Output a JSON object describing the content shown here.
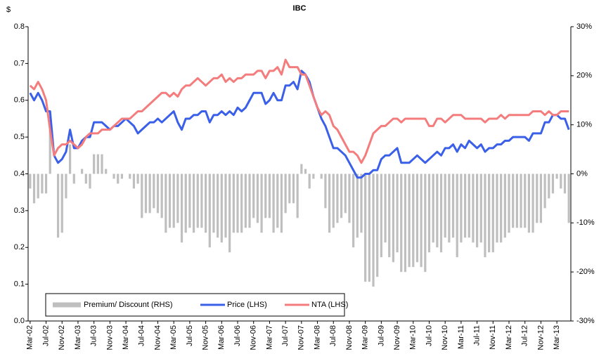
{
  "chart_data": {
    "type": "combo",
    "title": "IBC",
    "y_label": "$",
    "categories": [
      "Mar-02",
      null,
      null,
      null,
      "Jul-02",
      null,
      null,
      null,
      "Nov-02",
      null,
      null,
      null,
      "Mar-03",
      null,
      null,
      null,
      "Jul-03",
      null,
      null,
      null,
      "Nov-03",
      null,
      null,
      null,
      "Mar-04",
      null,
      null,
      null,
      "Jul-04",
      null,
      null,
      null,
      "Nov-04",
      null,
      null,
      null,
      "Mar-05",
      null,
      null,
      null,
      "Jul-05",
      null,
      null,
      null,
      "Nov-05",
      null,
      null,
      null,
      "Mar-06",
      null,
      null,
      null,
      "Jul-06",
      null,
      null,
      null,
      "Nov-06",
      null,
      null,
      null,
      "Mar-07",
      null,
      null,
      null,
      "Jul-07",
      null,
      null,
      null,
      "Nov-07",
      null,
      null,
      null,
      "Mar-08",
      null,
      null,
      null,
      "Jul-08",
      null,
      null,
      null,
      "Nov-08",
      null,
      null,
      null,
      "Mar-09",
      null,
      null,
      null,
      "Jul-09",
      null,
      null,
      null,
      "Nov-09",
      null,
      null,
      null,
      "Mar-10",
      null,
      null,
      null,
      "Jul-10",
      null,
      null,
      null,
      "Nov-10",
      null,
      null,
      null,
      "Mar-11",
      null,
      null,
      null,
      "Jul-11",
      null,
      null,
      null,
      "Nov-11",
      null,
      null,
      null,
      "Mar-12",
      null,
      null,
      null,
      "Jul-12",
      null,
      null,
      null,
      "Nov-12",
      null,
      null,
      null,
      "Mar-13",
      null,
      null,
      null
    ],
    "series": [
      {
        "name": "Premium/ Discount (RHS)",
        "kind": "bar",
        "axis": "y2",
        "color": "#bfbfbf",
        "values": [
          -3,
          -6,
          -5,
          -4,
          -4,
          10,
          0,
          -13,
          -12,
          -5,
          6,
          -2,
          0,
          1,
          -2,
          -3,
          4,
          4,
          4,
          1,
          0,
          -1,
          -2,
          -1,
          0,
          -1,
          -3,
          -2,
          -9,
          -8,
          -8,
          -7,
          -8,
          -9,
          -12,
          -11,
          -11,
          -10,
          -14,
          -12,
          -11,
          -12,
          -11,
          -11,
          -12,
          -15,
          -12,
          -13,
          -14,
          -13,
          -16,
          -12,
          -12,
          -12,
          -11,
          -11,
          -9,
          -10,
          -12,
          -9,
          -9,
          -12,
          -11,
          -12,
          -8,
          -6,
          -6,
          -9,
          2,
          1,
          -3,
          -1,
          0,
          -1,
          -7,
          -12,
          -11,
          -10,
          -9,
          -8,
          -10,
          -15,
          -13,
          -12,
          -22,
          -22,
          -23,
          -21,
          -17,
          -14,
          -17,
          -18,
          -16,
          -20,
          -20,
          -19,
          -19,
          -18,
          -19,
          -20,
          -16,
          -14,
          -15,
          -16,
          -13,
          -14,
          -13,
          -17,
          -14,
          -13,
          -13,
          -14,
          -15,
          -14,
          -17,
          -16,
          -16,
          -14,
          -14,
          -13,
          -12,
          -11,
          -11,
          -11,
          -11,
          -12,
          -12,
          -10,
          -10,
          -7,
          -5,
          -4,
          -1,
          -3,
          -4,
          -10
        ]
      },
      {
        "name": "Price (LHS)",
        "kind": "line",
        "color": "#3a5fe8",
        "values": [
          0.62,
          0.6,
          0.62,
          0.6,
          0.57,
          0.57,
          0.45,
          0.43,
          0.44,
          0.46,
          0.52,
          0.47,
          0.47,
          0.49,
          0.5,
          0.5,
          0.54,
          0.54,
          0.54,
          0.53,
          0.52,
          0.53,
          0.53,
          0.54,
          0.55,
          0.54,
          0.53,
          0.51,
          0.52,
          0.53,
          0.54,
          0.54,
          0.55,
          0.54,
          0.55,
          0.56,
          0.57,
          0.54,
          0.52,
          0.55,
          0.55,
          0.56,
          0.56,
          0.57,
          0.57,
          0.54,
          0.56,
          0.56,
          0.57,
          0.56,
          0.57,
          0.56,
          0.58,
          0.57,
          0.58,
          0.6,
          0.62,
          0.62,
          0.62,
          0.59,
          0.6,
          0.62,
          0.6,
          0.6,
          0.64,
          0.64,
          0.65,
          0.63,
          0.68,
          0.67,
          0.65,
          0.61,
          0.58,
          0.55,
          0.53,
          0.5,
          0.47,
          0.47,
          0.46,
          0.45,
          0.43,
          0.41,
          0.39,
          0.39,
          0.4,
          0.4,
          0.41,
          0.41,
          0.44,
          0.45,
          0.45,
          0.46,
          0.47,
          0.43,
          0.43,
          0.43,
          0.44,
          0.45,
          0.44,
          0.43,
          0.44,
          0.45,
          0.46,
          0.45,
          0.47,
          0.47,
          0.48,
          0.46,
          0.48,
          0.47,
          0.49,
          0.48,
          0.47,
          0.48,
          0.46,
          0.47,
          0.47,
          0.48,
          0.48,
          0.49,
          0.49,
          0.5,
          0.5,
          0.5,
          0.5,
          0.49,
          0.51,
          0.51,
          0.51,
          0.54,
          0.54,
          0.56,
          0.56,
          0.55,
          0.55,
          0.52
        ]
      },
      {
        "name": "NTA (LHS)",
        "kind": "line",
        "color": "#f47c7c",
        "values": [
          0.64,
          0.63,
          0.65,
          0.63,
          0.6,
          0.52,
          0.45,
          0.47,
          0.48,
          0.48,
          0.49,
          0.48,
          0.47,
          0.48,
          0.5,
          0.51,
          0.51,
          0.51,
          0.52,
          0.52,
          0.52,
          0.53,
          0.54,
          0.55,
          0.55,
          0.55,
          0.56,
          0.57,
          0.57,
          0.58,
          0.59,
          0.6,
          0.61,
          0.62,
          0.62,
          0.61,
          0.62,
          0.61,
          0.63,
          0.64,
          0.64,
          0.65,
          0.66,
          0.65,
          0.64,
          0.65,
          0.66,
          0.66,
          0.67,
          0.65,
          0.66,
          0.65,
          0.66,
          0.66,
          0.67,
          0.67,
          0.67,
          0.68,
          0.68,
          0.66,
          0.68,
          0.68,
          0.69,
          0.67,
          0.71,
          0.69,
          0.69,
          0.69,
          0.67,
          0.67,
          0.64,
          0.61,
          0.58,
          0.56,
          0.57,
          0.56,
          0.53,
          0.52,
          0.5,
          0.48,
          0.46,
          0.46,
          0.45,
          0.43,
          0.45,
          0.48,
          0.51,
          0.52,
          0.53,
          0.53,
          0.54,
          0.55,
          0.55,
          0.54,
          0.55,
          0.55,
          0.55,
          0.55,
          0.55,
          0.55,
          0.53,
          0.53,
          0.55,
          0.55,
          0.54,
          0.55,
          0.56,
          0.56,
          0.56,
          0.55,
          0.55,
          0.55,
          0.55,
          0.55,
          0.54,
          0.55,
          0.55,
          0.55,
          0.56,
          0.55,
          0.56,
          0.56,
          0.56,
          0.56,
          0.56,
          0.56,
          0.57,
          0.57,
          0.57,
          0.56,
          0.57,
          0.56,
          0.56,
          0.57,
          0.57,
          0.57
        ]
      }
    ],
    "ylim": [
      0,
      0.8
    ],
    "yticks": [
      {
        "value": 0,
        "label": "0.0"
      },
      0.1,
      0.2,
      0.3,
      0.4,
      0.5,
      0.6,
      0.7,
      0.8
    ],
    "y2lim": [
      -30,
      30
    ],
    "y2ticks": [
      {
        "value": -30,
        "label": "-30%"
      },
      {
        "value": -20,
        "label": "-20%"
      },
      {
        "value": -10,
        "label": "-10%"
      },
      {
        "value": 0,
        "label": "0%"
      },
      {
        "value": 10,
        "label": "10%"
      },
      {
        "value": 20,
        "label": "20%"
      },
      {
        "value": 30,
        "label": "30%"
      }
    ],
    "legend": "bottom-left",
    "grid": false
  }
}
